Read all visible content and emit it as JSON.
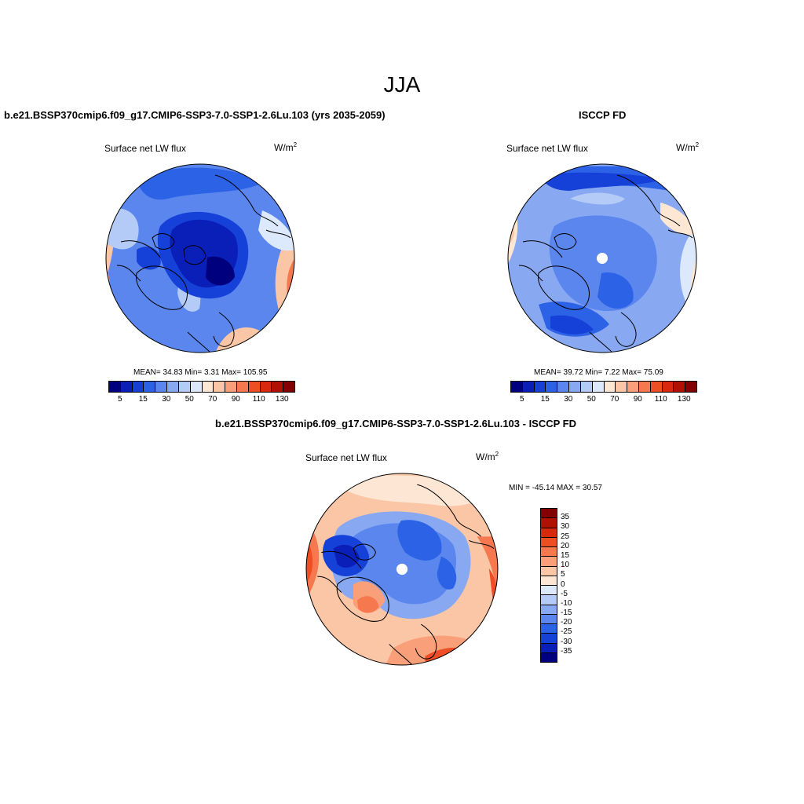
{
  "figure": {
    "season": "JJA"
  },
  "panels": {
    "model": {
      "title": "b.e21.BSSP370cmip6.f09_g17.CMIP6-SSP3-7.0-SSP1-2.6Lu.103 (yrs 2035-2059)",
      "variable": "Surface net LW flux",
      "units_base": "W/m",
      "units_exp": "2",
      "stats": "MEAN=  34.83  Min=    3.31  Max= 105.95"
    },
    "obs": {
      "title": "ISCCP FD",
      "variable": "Surface net LW flux",
      "units_base": "W/m",
      "units_exp": "2",
      "stats": "MEAN=  39.72  Min=    7.22  Max=  75.09"
    },
    "diff": {
      "title": "b.e21.BSSP370cmip6.f09_g17.CMIP6-SSP3-7.0-SSP1-2.6Lu.103 - ISCCP FD",
      "variable": "Surface net LW flux",
      "units_base": "W/m",
      "units_exp": "2",
      "stats": "MIN = -45.14 MAX =  30.57"
    }
  },
  "colorbar_abs": {
    "labels": [
      "5",
      "15",
      "30",
      "50",
      "70",
      "90",
      "110",
      "130"
    ],
    "colors": [
      "#00007f",
      "#0a1fb8",
      "#1641d8",
      "#2c62e6",
      "#5a86ee",
      "#88a8f2",
      "#b5cbf7",
      "#dce8fb",
      "#fde7d4",
      "#fbc6a6",
      "#f9a07a",
      "#f6784f",
      "#ef4d24",
      "#d8280d",
      "#b01103",
      "#820000"
    ]
  },
  "colorbar_diff": {
    "labels": [
      "35",
      "30",
      "25",
      "20",
      "15",
      "10",
      "5",
      "0",
      "-5",
      "-10",
      "-15",
      "-20",
      "-25",
      "-30",
      "-35"
    ],
    "colors": [
      "#820000",
      "#b01103",
      "#d8280d",
      "#ef4d24",
      "#f6784f",
      "#f9a07a",
      "#fbc6a6",
      "#fde7d4",
      "#dce8fb",
      "#b5cbf7",
      "#88a8f2",
      "#5a86ee",
      "#2c62e6",
      "#1641d8",
      "#0a1fb8",
      "#00007f"
    ]
  }
}
